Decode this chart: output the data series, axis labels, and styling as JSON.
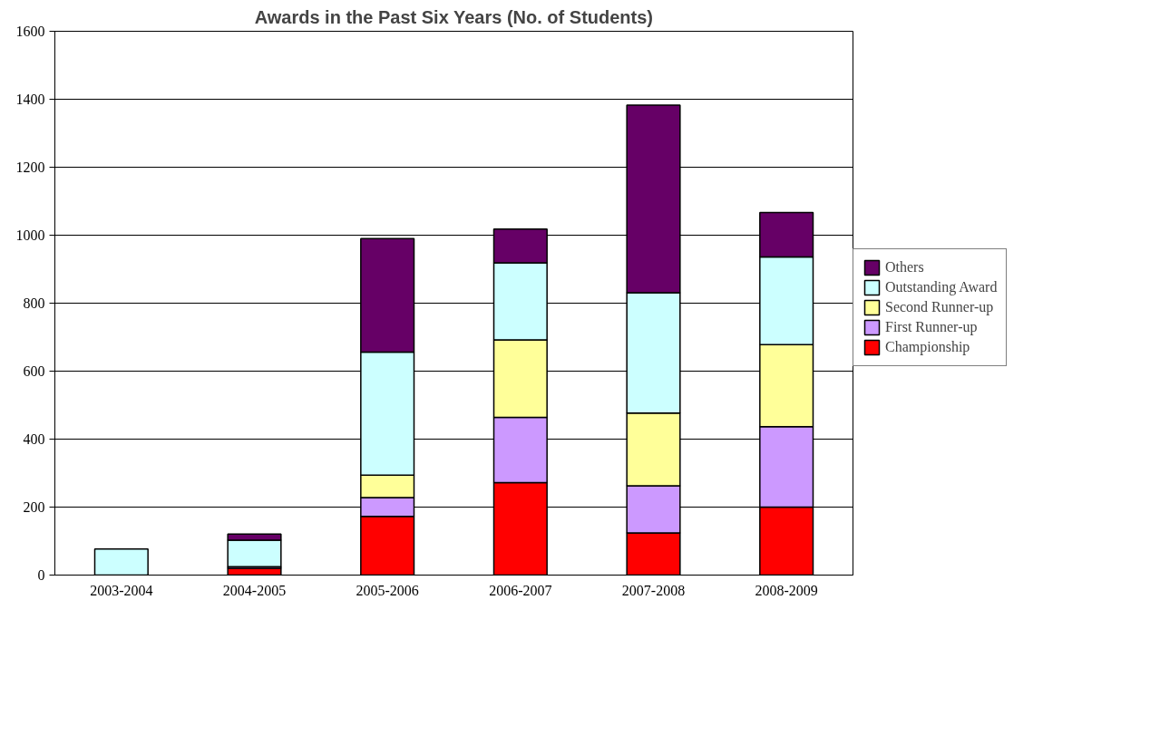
{
  "chart_data": {
    "type": "bar",
    "stacked": true,
    "title": "Awards in the Past Six Years (No. of Students)",
    "categories": [
      "2003-2004",
      "2004-2005",
      "2005-2006",
      "2006-2007",
      "2007-2008",
      "2008-2009"
    ],
    "series": [
      {
        "name": "Championship",
        "color": "#ff0000",
        "values": [
          null,
          20,
          173,
          272,
          124,
          200
        ]
      },
      {
        "name": "First Runner-up",
        "color": "#cc99ff",
        "values": [
          0,
          5,
          55,
          192,
          139,
          237
        ]
      },
      {
        "name": "Second Runner-up",
        "color": "#ffff99",
        "values": [
          0,
          null,
          66,
          228,
          214,
          241
        ]
      },
      {
        "name": "Outstanding Award",
        "color": "#ccffff",
        "values": [
          77,
          78,
          362,
          227,
          354,
          258
        ]
      },
      {
        "name": "Others",
        "color": "#660066",
        "values": [
          0,
          18,
          334,
          99,
          552,
          131
        ]
      }
    ],
    "ylim": [
      0,
      1600
    ],
    "yticks": [
      0,
      200,
      400,
      600,
      800,
      1000,
      1200,
      1400,
      1600
    ],
    "grid": "y",
    "legend": "right"
  }
}
